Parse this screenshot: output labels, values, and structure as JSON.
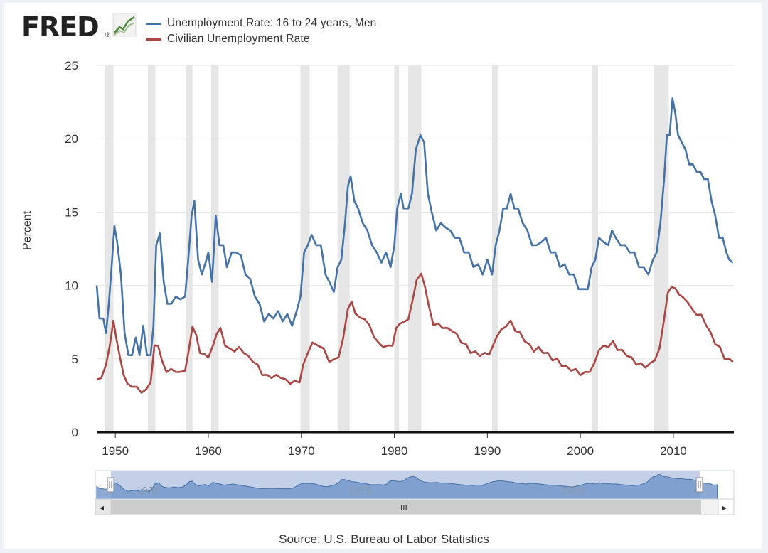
{
  "logo": {
    "text": "FRED",
    "mark": "®",
    "icon": "line-chart-icon"
  },
  "source": "Source: U.S. Bureau of Labor Statistics",
  "navigator": {
    "labels": [
      "1950",
      "1975",
      "2000"
    ],
    "scrollbar_grip": "III",
    "left_arrow": "◂",
    "right_arrow": "▸"
  },
  "chart_data": {
    "type": "line",
    "title": "",
    "xlabel": "",
    "ylabel": "Percent",
    "xlim": [
      1948,
      2016.5
    ],
    "ylim": [
      0,
      25
    ],
    "xticks": [
      "1950",
      "1960",
      "1970",
      "1980",
      "1990",
      "2000",
      "2010"
    ],
    "yticks": [
      "0",
      "5",
      "10",
      "15",
      "20",
      "25"
    ],
    "grid": true,
    "legend_position": "top-left",
    "recessions": [
      [
        1948.9,
        1949.8
      ],
      [
        1953.5,
        1954.3
      ],
      [
        1957.6,
        1958.3
      ],
      [
        1960.3,
        1961.1
      ],
      [
        1969.9,
        1970.9
      ],
      [
        1973.9,
        1975.2
      ],
      [
        1980.0,
        1980.5
      ],
      [
        1981.5,
        1982.9
      ],
      [
        1990.5,
        1991.2
      ],
      [
        2001.2,
        2001.9
      ],
      [
        2007.9,
        2009.5
      ]
    ],
    "series": [
      {
        "name": "Unemployment Rate: 16 to 24 years, Men",
        "color": "#4572a7",
        "x": [
          1948.0,
          1948.3,
          1948.7,
          1949.0,
          1949.3,
          1949.6,
          1949.9,
          1950.2,
          1950.6,
          1951.0,
          1951.4,
          1951.8,
          1952.2,
          1952.6,
          1953.0,
          1953.4,
          1953.8,
          1954.1,
          1954.4,
          1954.8,
          1955.2,
          1955.6,
          1956.0,
          1956.5,
          1957.0,
          1957.5,
          1957.9,
          1958.2,
          1958.5,
          1958.9,
          1959.3,
          1959.7,
          1960.0,
          1960.4,
          1960.8,
          1961.2,
          1961.6,
          1962.0,
          1962.5,
          1963.0,
          1963.5,
          1964.0,
          1964.5,
          1965.0,
          1965.5,
          1966.0,
          1966.5,
          1967.0,
          1967.5,
          1968.0,
          1968.5,
          1969.0,
          1969.5,
          1969.9,
          1970.3,
          1970.7,
          1971.1,
          1971.6,
          1972.1,
          1972.6,
          1973.0,
          1973.5,
          1973.9,
          1974.3,
          1974.7,
          1975.0,
          1975.3,
          1975.7,
          1976.1,
          1976.6,
          1977.1,
          1977.6,
          1978.1,
          1978.6,
          1979.1,
          1979.6,
          1980.0,
          1980.3,
          1980.7,
          1981.0,
          1981.5,
          1981.9,
          1982.3,
          1982.8,
          1983.2,
          1983.6,
          1984.0,
          1984.5,
          1985.0,
          1985.5,
          1986.0,
          1986.5,
          1987.0,
          1987.5,
          1988.0,
          1988.5,
          1989.0,
          1989.5,
          1990.0,
          1990.5,
          1990.9,
          1991.3,
          1991.7,
          1992.1,
          1992.5,
          1992.9,
          1993.3,
          1993.8,
          1994.3,
          1994.8,
          1995.3,
          1995.8,
          1996.3,
          1996.8,
          1997.3,
          1997.8,
          1998.3,
          1998.8,
          1999.3,
          1999.8,
          2000.3,
          2000.8,
          2001.2,
          2001.6,
          2002.0,
          2002.5,
          2003.0,
          2003.4,
          2003.8,
          2004.3,
          2004.8,
          2005.3,
          2005.8,
          2006.3,
          2006.8,
          2007.3,
          2007.8,
          2008.2,
          2008.6,
          2009.0,
          2009.3,
          2009.6,
          2009.9,
          2010.2,
          2010.5,
          2010.9,
          2011.3,
          2011.7,
          2012.1,
          2012.5,
          2012.9,
          2013.3,
          2013.7,
          2014.1,
          2014.5,
          2014.9,
          2015.3,
          2015.7,
          2016.0,
          2016.4
        ],
        "values": [
          10.0,
          8.0,
          7.5,
          7.0,
          8.5,
          11.5,
          13.8,
          13.2,
          10.5,
          7.0,
          5.0,
          5.5,
          6.2,
          5.5,
          7.0,
          5.5,
          5.0,
          7.5,
          12.5,
          13.8,
          10.0,
          9.0,
          8.5,
          9.5,
          8.8,
          9.5,
          12.0,
          15.0,
          15.5,
          12.0,
          10.5,
          11.8,
          12.0,
          10.5,
          14.5,
          13.0,
          12.5,
          11.5,
          12.0,
          12.5,
          11.8,
          11.0,
          10.2,
          9.5,
          8.5,
          7.8,
          7.8,
          8.0,
          8.0,
          7.8,
          7.8,
          7.5,
          8.0,
          9.5,
          12.0,
          13.0,
          13.2,
          13.0,
          12.5,
          11.0,
          10.0,
          9.8,
          11.0,
          12.0,
          14.0,
          17.0,
          17.2,
          16.0,
          15.0,
          14.5,
          13.5,
          13.0,
          12.0,
          11.8,
          12.0,
          11.5,
          12.5,
          15.5,
          16.0,
          15.5,
          15.0,
          16.5,
          19.0,
          20.5,
          19.5,
          16.5,
          14.8,
          14.0,
          14.0,
          14.2,
          13.5,
          13.5,
          13.0,
          12.5,
          12.0,
          11.5,
          11.2,
          11.0,
          11.5,
          11.0,
          12.5,
          14.0,
          15.0,
          15.5,
          16.0,
          15.5,
          15.0,
          14.5,
          13.5,
          13.0,
          12.5,
          13.2,
          13.0,
          12.5,
          12.0,
          11.5,
          11.2,
          11.0,
          10.5,
          10.0,
          9.5,
          10.0,
          11.0,
          12.0,
          13.0,
          13.2,
          12.5,
          14.0,
          13.0,
          13.0,
          12.5,
          12.5,
          12.0,
          11.5,
          11.0,
          11.0,
          11.5,
          12.5,
          14.0,
          17.5,
          20.0,
          20.5,
          22.5,
          22.0,
          20.0,
          20.0,
          19.0,
          18.5,
          18.0,
          18.0,
          17.5,
          17.5,
          17.0,
          16.0,
          14.5,
          13.5,
          13.0,
          12.5,
          11.5,
          11.8
        ]
      },
      {
        "name": "Civilian Unemployment Rate",
        "color": "#aa4643",
        "x": [
          1948.0,
          1948.5,
          1949.0,
          1949.4,
          1949.8,
          1950.1,
          1950.5,
          1950.9,
          1951.3,
          1951.8,
          1952.3,
          1952.8,
          1953.3,
          1953.8,
          1954.2,
          1954.6,
          1955.0,
          1955.5,
          1956.0,
          1956.5,
          1957.0,
          1957.5,
          1957.9,
          1958.3,
          1958.7,
          1959.1,
          1959.6,
          1960.0,
          1960.5,
          1960.9,
          1961.3,
          1961.8,
          1962.3,
          1962.8,
          1963.3,
          1963.8,
          1964.3,
          1964.8,
          1965.3,
          1965.8,
          1966.3,
          1966.8,
          1967.3,
          1967.8,
          1968.3,
          1968.8,
          1969.3,
          1969.8,
          1970.2,
          1970.7,
          1971.2,
          1971.8,
          1972.4,
          1973.0,
          1973.6,
          1974.0,
          1974.5,
          1975.0,
          1975.4,
          1975.8,
          1976.3,
          1976.8,
          1977.3,
          1977.8,
          1978.3,
          1978.8,
          1979.3,
          1979.8,
          1980.2,
          1980.6,
          1981.0,
          1981.5,
          1982.0,
          1982.4,
          1982.9,
          1983.3,
          1983.7,
          1984.2,
          1984.7,
          1985.2,
          1985.7,
          1986.2,
          1986.7,
          1987.2,
          1987.7,
          1988.2,
          1988.7,
          1989.2,
          1989.7,
          1990.2,
          1990.6,
          1991.0,
          1991.5,
          1992.0,
          1992.5,
          1993.0,
          1993.5,
          1994.0,
          1994.5,
          1995.0,
          1995.5,
          1996.0,
          1996.5,
          1997.0,
          1997.5,
          1998.0,
          1998.5,
          1999.0,
          1999.5,
          2000.0,
          2000.5,
          2001.0,
          2001.5,
          2002.0,
          2002.5,
          2003.0,
          2003.5,
          2004.0,
          2004.5,
          2005.0,
          2005.5,
          2006.0,
          2006.5,
          2007.0,
          2007.5,
          2008.0,
          2008.5,
          2009.0,
          2009.4,
          2009.8,
          2010.2,
          2010.6,
          2011.0,
          2011.5,
          2012.0,
          2012.5,
          2013.0,
          2013.5,
          2014.0,
          2014.5,
          2015.0,
          2015.5,
          2016.0,
          2016.4
        ],
        "values": [
          3.6,
          3.8,
          4.5,
          6.0,
          7.5,
          6.5,
          5.0,
          4.0,
          3.2,
          3.2,
          3.0,
          2.8,
          2.8,
          3.5,
          5.8,
          6.0,
          4.8,
          4.2,
          4.2,
          4.2,
          4.0,
          4.3,
          5.5,
          7.3,
          6.5,
          5.5,
          5.2,
          5.2,
          5.8,
          6.8,
          7.0,
          6.0,
          5.6,
          5.6,
          5.7,
          5.5,
          5.1,
          4.9,
          4.5,
          4.0,
          3.8,
          3.8,
          3.8,
          3.8,
          3.5,
          3.4,
          3.4,
          3.5,
          4.5,
          5.5,
          6.0,
          6.0,
          5.6,
          4.9,
          4.9,
          5.2,
          6.3,
          8.5,
          8.8,
          8.2,
          7.7,
          7.8,
          7.2,
          6.6,
          6.0,
          5.9,
          5.8,
          6.0,
          7.0,
          7.5,
          7.4,
          7.8,
          9.0,
          10.5,
          10.7,
          10.0,
          8.5,
          7.4,
          7.3,
          7.2,
          7.0,
          7.0,
          6.6,
          6.2,
          5.9,
          5.5,
          5.4,
          5.3,
          5.3,
          5.4,
          5.8,
          6.6,
          6.9,
          7.3,
          7.5,
          7.0,
          6.7,
          6.3,
          5.9,
          5.6,
          5.7,
          5.5,
          5.3,
          5.0,
          4.9,
          4.6,
          4.4,
          4.3,
          4.2,
          4.0,
          4.0,
          4.2,
          4.6,
          5.7,
          5.8,
          5.9,
          6.1,
          5.7,
          5.5,
          5.3,
          5.0,
          4.7,
          4.6,
          4.5,
          4.6,
          5.0,
          5.6,
          7.8,
          9.4,
          10.0,
          9.7,
          9.5,
          9.1,
          9.0,
          8.3,
          8.1,
          7.9,
          7.4,
          6.7,
          6.1,
          5.7,
          5.1,
          4.9,
          4.9
        ]
      }
    ]
  }
}
